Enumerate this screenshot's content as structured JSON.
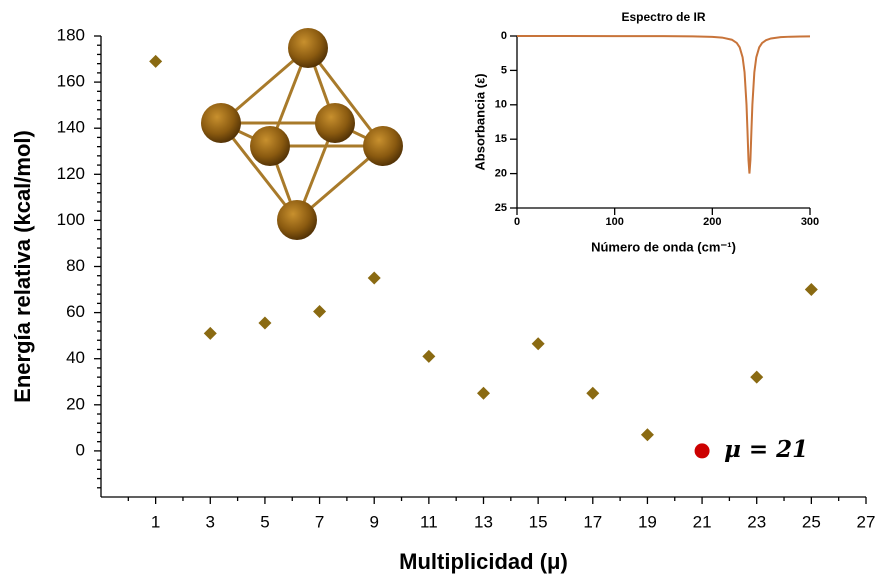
{
  "chart_data": [
    {
      "type": "scatter",
      "xlabel": "Multiplicidad (μ)",
      "ylabel": "Energía relativa (kcal/mol)",
      "xlim": [
        -1,
        27
      ],
      "xticks": [
        1,
        3,
        5,
        7,
        9,
        11,
        13,
        15,
        17,
        19,
        21,
        23,
        25,
        27
      ],
      "ylim": [
        -20,
        180
      ],
      "yticks": [
        0,
        20,
        40,
        60,
        80,
        100,
        120,
        140,
        160,
        180
      ],
      "series": [
        {
          "color": "#8a6a12",
          "marker": "diamond",
          "x": [
            1,
            3,
            5,
            7,
            9,
            11,
            13,
            15,
            17,
            19,
            23,
            25
          ],
          "values": [
            169,
            51,
            55.5,
            60.5,
            75,
            41,
            25,
            46.5,
            25,
            7,
            32,
            70
          ]
        },
        {
          "name": "μ = 21",
          "color": "#cc0000",
          "marker": "circle",
          "x": [
            21
          ],
          "values": [
            0
          ]
        }
      ]
    },
    {
      "type": "line",
      "title": "Espectro de IR",
      "xlabel": "Número de onda (cm⁻¹)",
      "ylabel": "Absorbancia (ε)",
      "xlim": [
        0,
        300
      ],
      "xticks": [
        0,
        100,
        200,
        300
      ],
      "ylim": [
        0,
        25
      ],
      "yticks": [
        0,
        5,
        10,
        15,
        20,
        25
      ],
      "y_inverted": true,
      "x": [
        0,
        50,
        100,
        150,
        180,
        200,
        210,
        220,
        225,
        228,
        231,
        233,
        235,
        236,
        237,
        238,
        239,
        240,
        241,
        243,
        245,
        248,
        251,
        255,
        260,
        270,
        280,
        290,
        300
      ],
      "series": [
        {
          "color": "#c8743a",
          "values": [
            0,
            0,
            0.01,
            0.02,
            0.05,
            0.12,
            0.23,
            0.54,
            1.01,
            1.65,
            3.1,
            5.29,
            10,
            13.85,
            18,
            20,
            18,
            13.85,
            10,
            5.29,
            3.1,
            1.65,
            1.01,
            0.6,
            0.36,
            0.17,
            0.1,
            0.07,
            0.05
          ]
        }
      ]
    }
  ]
}
